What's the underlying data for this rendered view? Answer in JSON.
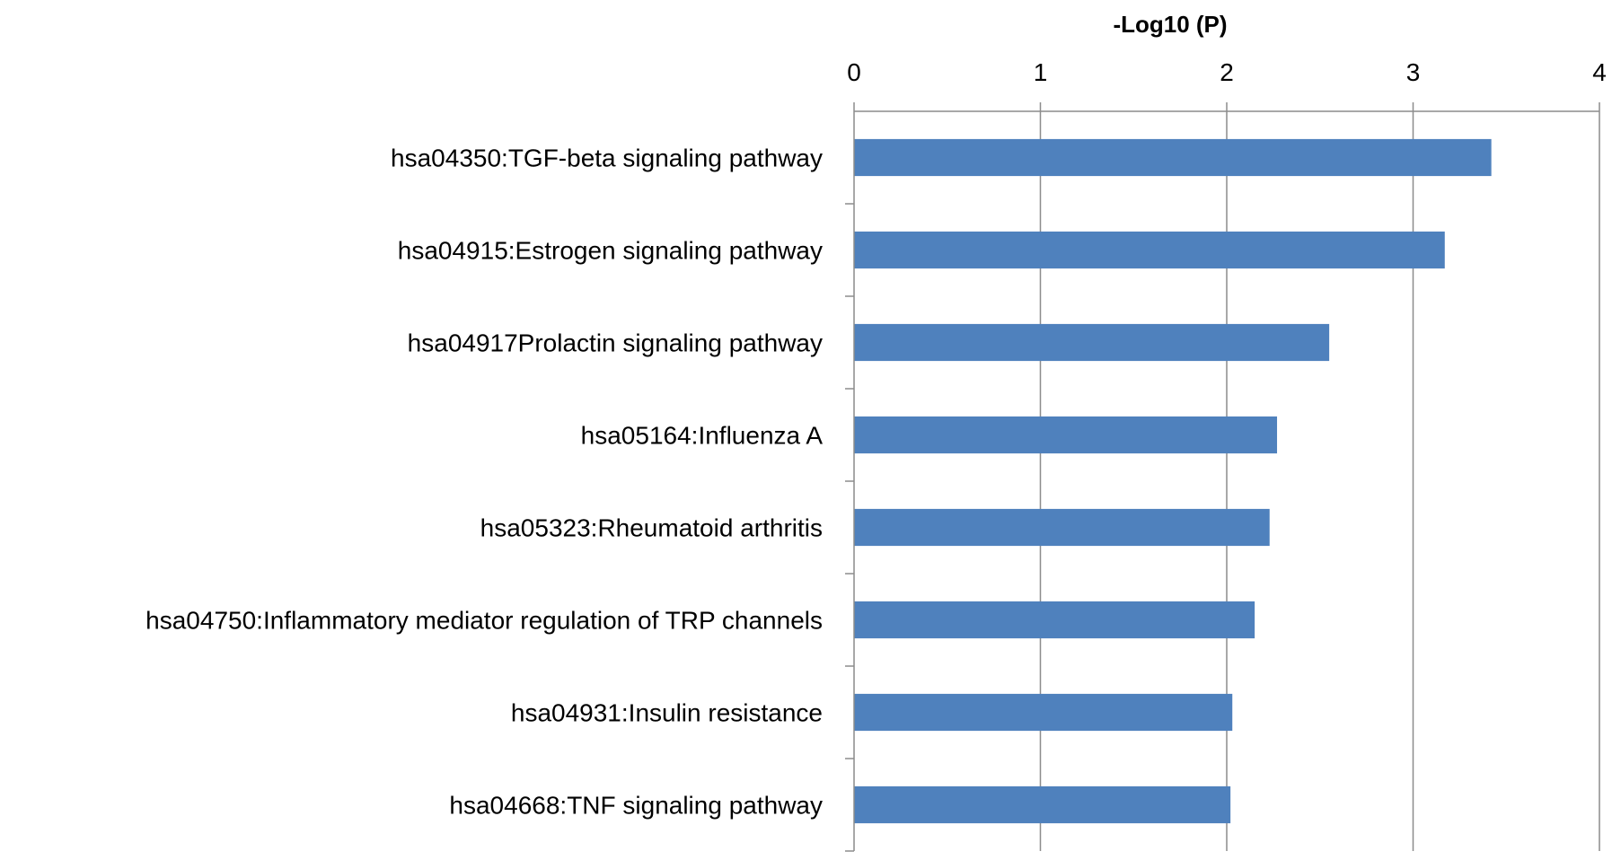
{
  "chart_data": {
    "type": "bar",
    "orientation": "horizontal",
    "xlabel": "-Log10 (P)",
    "x_axis_position": "top",
    "xlim": [
      0,
      4
    ],
    "xticks": [
      "0",
      "1",
      "2",
      "3",
      "4"
    ],
    "grid": true,
    "bar_color": "#4f81bd",
    "categories": [
      "hsa04350:TGF-beta signaling pathway",
      "hsa04915:Estrogen signaling pathway",
      "hsa04917Prolactin signaling pathway",
      "hsa05164:Influenza A",
      "hsa05323:Rheumatoid arthritis",
      "hsa04750:Inflammatory mediator regulation of TRP channels",
      "hsa04931:Insulin resistance",
      "hsa04668:TNF signaling pathway"
    ],
    "values": [
      3.42,
      3.17,
      2.55,
      2.27,
      2.23,
      2.15,
      2.03,
      2.02
    ]
  }
}
